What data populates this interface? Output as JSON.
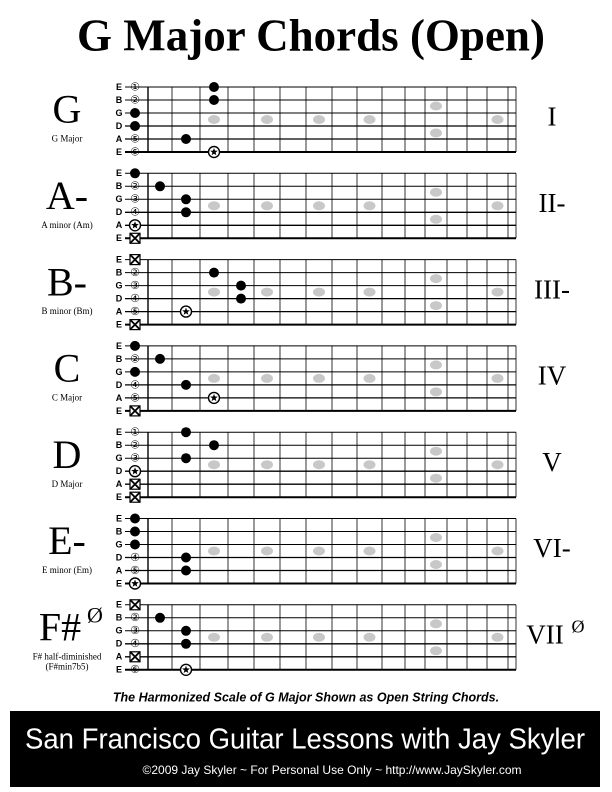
{
  "title": "G Major Chords (Open)",
  "strings": [
    {
      "name": "E",
      "number": "①"
    },
    {
      "name": "B",
      "number": "②"
    },
    {
      "name": "G",
      "number": "③"
    },
    {
      "name": "D",
      "number": "④"
    },
    {
      "name": "A",
      "number": "⑤"
    },
    {
      "name": "E",
      "number": "⑥"
    }
  ],
  "chords": [
    {
      "name": "G",
      "subtitle": [
        "G Major"
      ],
      "numeral": "I"
    },
    {
      "name": "A-",
      "subtitle": [
        "A minor (Am)"
      ],
      "numeral": "II-"
    },
    {
      "name": "B-",
      "subtitle": [
        "B minor (Bm)"
      ],
      "numeral": "III-"
    },
    {
      "name": "C",
      "subtitle": [
        "C Major"
      ],
      "numeral": "IV"
    },
    {
      "name": "D",
      "subtitle": [
        "D Major"
      ],
      "numeral": "V"
    },
    {
      "name": "E-",
      "subtitle": [
        "E minor (Em)"
      ],
      "numeral": "VI-"
    },
    {
      "name": "F#",
      "name_sup": "Ø",
      "subtitle": [
        "F# half-diminished",
        "(F#min7b5)"
      ],
      "numeral": "VII",
      "numeral_sup": "Ø"
    }
  ],
  "caption": "The Harmonized Scale of G Major Shown as Open String Chords.",
  "footer": {
    "title": "San Francisco Guitar Lessons with Jay Skyler",
    "line": "©2009 Jay Skyler ~ For Personal Use Only ~ http://www.JaySkyler.com"
  }
}
